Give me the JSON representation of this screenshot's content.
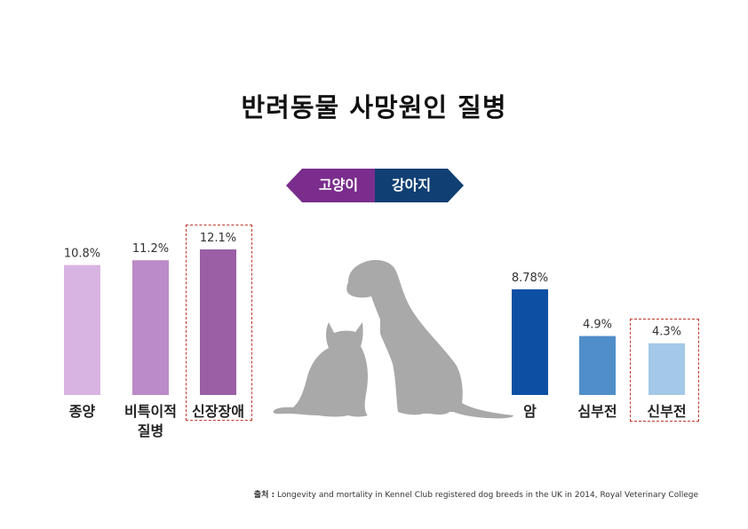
{
  "title": "반려동물 사망원인 질병",
  "legend": {
    "left": "고양이",
    "right": "강아지"
  },
  "source": {
    "prefix": "출처 :",
    "text": "Longevity and mortality in Kennel Club registered dog breeds in the UK in 2014, Royal Veterinary College"
  },
  "chart_data": [
    {
      "type": "bar",
      "series_label": "고양이",
      "categories": [
        "종양",
        "비특이적\n질병",
        "신장장애"
      ],
      "values": [
        10.8,
        11.2,
        12.1
      ],
      "value_labels": [
        "10.8%",
        "11.2%",
        "12.1%"
      ],
      "colors": [
        "#d8b4e2",
        "#bb8ac8",
        "#9b5fa6"
      ],
      "highlighted": "신장장애",
      "ylim": [
        0,
        12.1
      ]
    },
    {
      "type": "bar",
      "series_label": "강아지",
      "categories": [
        "암",
        "심부전",
        "신부전"
      ],
      "values": [
        8.78,
        4.9,
        4.3
      ],
      "value_labels": [
        "8.78%",
        "4.9%",
        "4.3%"
      ],
      "colors": [
        "#0d4fa3",
        "#4f8ec9",
        "#a3c8e8"
      ],
      "highlighted": "신부전",
      "ylim": [
        0,
        12.1
      ]
    }
  ],
  "colors": {
    "cat_accent": "#7a2d8c",
    "dog_accent": "#0f3f73",
    "silhouette": "#a9a9a9",
    "highlight_border": "#c0392b"
  },
  "illustration": "cat-and-dog-silhouette"
}
